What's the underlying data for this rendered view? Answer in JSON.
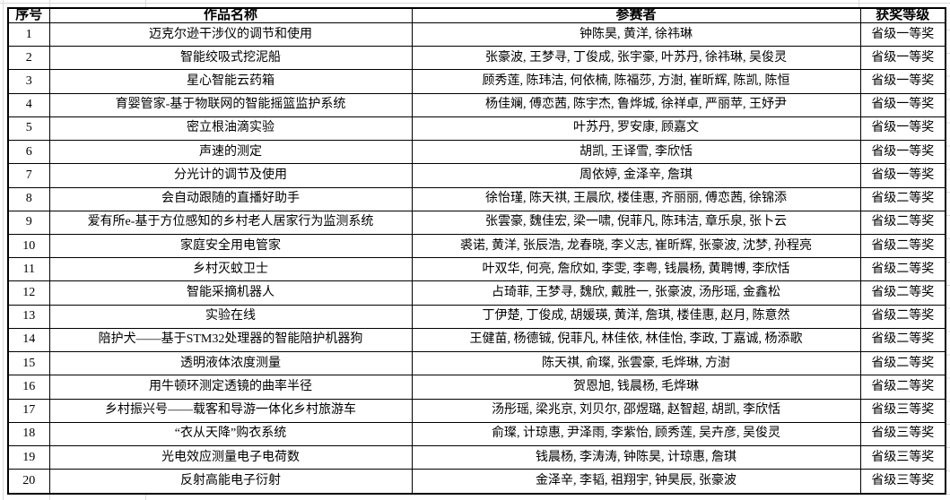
{
  "table": {
    "headers": [
      "序号",
      "作品名称",
      "参赛者",
      "获奖等级"
    ],
    "rows": [
      {
        "no": "1",
        "title": "迈克尔逊干涉仪的调节和使用",
        "participants": "钟陈昊, 黄洋, 徐祎琳",
        "award": "省级一等奖"
      },
      {
        "no": "2",
        "title": "智能绞吸式挖泥船",
        "participants": "张豪波, 王梦寻, 丁俊成, 张宇豪, 叶苏丹, 徐祎琳, 吴俊灵",
        "award": "省级一等奖"
      },
      {
        "no": "3",
        "title": "星心智能云药箱",
        "participants": "顾秀莲, 陈玮洁, 何依楠, 陈福莎, 方澍, 崔昕辉, 陈凯, 陈恒",
        "award": "省级一等奖"
      },
      {
        "no": "4",
        "title": "育婴管家-基于物联网的智能摇篮监护系统",
        "participants": "杨佳斓, 傅恋茜, 陈宇杰, 鲁烨城, 徐祥卓, 严丽苹, 王妤尹",
        "award": "省级一等奖"
      },
      {
        "no": "5",
        "title": "密立根油滴实验",
        "participants": "叶苏丹, 罗安康, 顾嘉文",
        "award": "省级一等奖"
      },
      {
        "no": "6",
        "title": "声速的测定",
        "participants": "胡凯, 王译雪, 李欣恬",
        "award": "省级一等奖"
      },
      {
        "no": "7",
        "title": "分光计的调节及使用",
        "participants": "周依婷, 金泽辛, 詹琪",
        "award": "省级一等奖"
      },
      {
        "no": "8",
        "title": "会自动跟随的直播好助手",
        "participants": "徐怡瑾, 陈天祺, 王晨欣, 楼佳惠, 齐丽丽, 傅恋茜, 徐锦添",
        "award": "省级二等奖"
      },
      {
        "no": "9",
        "title": "爱有所e-基于方位感知的乡村老人居家行为监测系统",
        "participants": "张雲豪, 魏佳宏, 梁一啸, 倪菲凡, 陈玮洁, 章乐泉, 张卜云",
        "award": "省级二等奖"
      },
      {
        "no": "10",
        "title": "家庭安全用电管家",
        "participants": "裘诺, 黄洋, 张辰浩, 龙春晓, 李义志, 崔昕辉, 张豪波, 沈梦, 孙程亮",
        "award": "省级二等奖"
      },
      {
        "no": "11",
        "title": "乡村灭蚊卫士",
        "participants": "叶双华, 何亮, 詹欣如, 李雯, 李粤, 钱晨杨, 黄聘博, 李欣恬",
        "award": "省级二等奖"
      },
      {
        "no": "12",
        "title": "智能采摘机器人",
        "participants": "占琦菲, 王梦寻, 魏欣, 戴胜一, 张豪波, 汤彤瑶, 金鑫松",
        "award": "省级二等奖"
      },
      {
        "no": "13",
        "title": "实验在线",
        "participants": "丁伊楚, 丁俊成, 胡媛瑛, 黄洋, 詹琪, 楼佳惠, 赵月, 陈意然",
        "award": "省级二等奖"
      },
      {
        "no": "14",
        "title": "陪护犬——基于STM32处理器的智能陪护机器狗",
        "participants": "王健苗, 杨德铖, 倪菲凡, 林佳依, 林佳怡, 李政, 丁嘉诚, 杨添歌",
        "award": "省级二等奖"
      },
      {
        "no": "15",
        "title": "透明液体浓度测量",
        "participants": "陈天祺, 俞璨, 张雲豪, 毛烨琳, 方澍",
        "award": "省级二等奖"
      },
      {
        "no": "16",
        "title": "用牛顿环测定透镜的曲率半径",
        "participants": "贺恩旭, 钱晨杨, 毛烨琳",
        "award": "省级二等奖"
      },
      {
        "no": "17",
        "title": "乡村振兴号——载客和导游一体化乡村旅游车",
        "participants": "汤彤瑶, 梁兆京, 刘贝尔, 邵煜璐, 赵智超, 胡凯, 李欣恬",
        "award": "省级三等奖"
      },
      {
        "no": "18",
        "title": "“衣从天降”购衣系统",
        "participants": "俞璨, 计琼惠, 尹泽雨, 李紫怡, 顾秀莲, 吴卉彦, 吴俊灵",
        "award": "省级三等奖"
      },
      {
        "no": "19",
        "title": "光电效应测量电子电荷数",
        "participants": "钱晨杨, 李涛涛, 钟陈昊, 计琼惠, 詹琪",
        "award": "省级三等奖"
      },
      {
        "no": "20",
        "title": "反射高能电子衍射",
        "participants": "金泽辛, 李韬, 祖翔宇, 钟昊辰, 张豪波",
        "award": "省级三等奖"
      }
    ]
  },
  "colors": {
    "table_border": "#000000",
    "gridline": "#d9d9d9",
    "background": "#ffffff",
    "text": "#000000"
  }
}
